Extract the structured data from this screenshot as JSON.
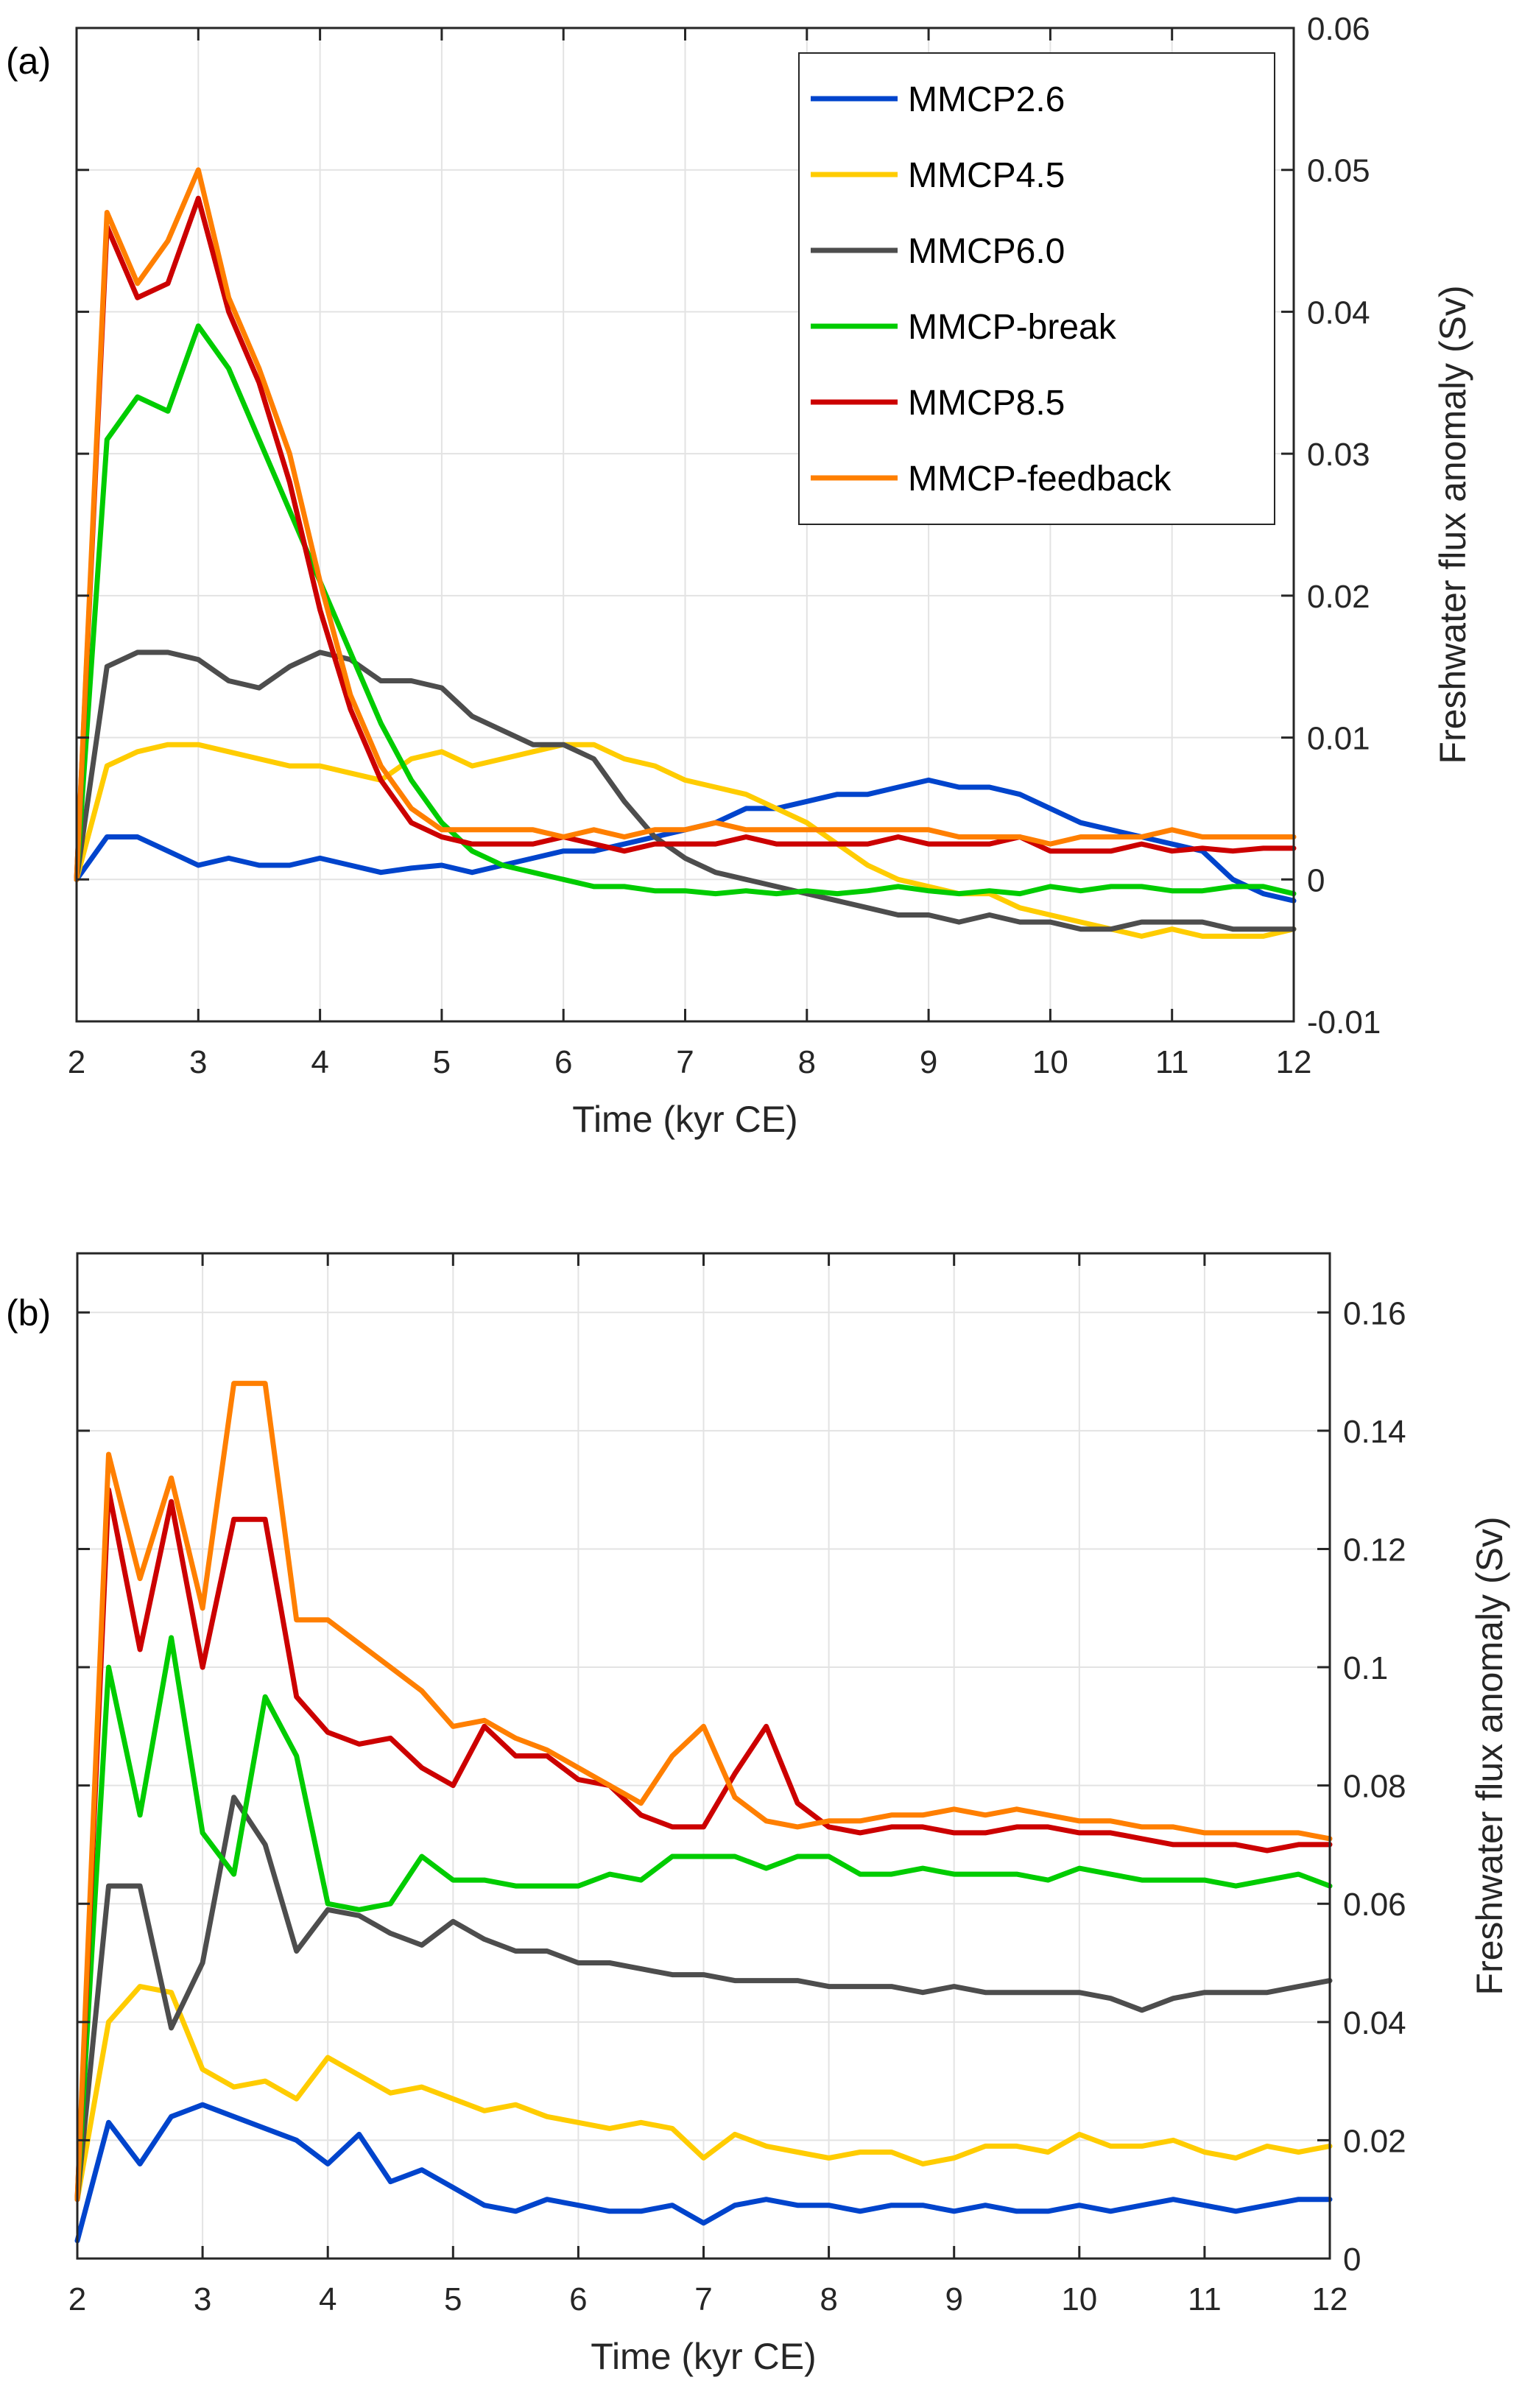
{
  "chart_data": [
    {
      "type": "line",
      "panel_label": "(a)",
      "xlabel": "Time (kyr CE)",
      "ylabel": "Freshwater flux anomaly (Sv)",
      "xlim": [
        2,
        12
      ],
      "ylim": [
        -0.01,
        0.06
      ],
      "x_ticks": [
        2,
        3,
        4,
        5,
        6,
        7,
        8,
        9,
        10,
        11,
        12
      ],
      "x_tick_labels": [
        "2",
        "3",
        "4",
        "5",
        "6",
        "7",
        "8",
        "9",
        "10",
        "11",
        "12"
      ],
      "y_ticks": [
        -0.01,
        0,
        0.01,
        0.02,
        0.03,
        0.04,
        0.05,
        0.06
      ],
      "y_tick_labels": [
        "-0.01",
        "0",
        "0.01",
        "0.02",
        "0.03",
        "0.04",
        "0.05",
        "0.06"
      ],
      "y_axis_side": "right",
      "grid": true,
      "legend_position": "top-right",
      "x": [
        2.0,
        2.25,
        2.5,
        2.75,
        3.0,
        3.25,
        3.5,
        3.75,
        4.0,
        4.25,
        4.5,
        4.75,
        5.0,
        5.25,
        5.5,
        5.75,
        6.0,
        6.25,
        6.5,
        6.75,
        7.0,
        7.25,
        7.5,
        7.75,
        8.0,
        8.25,
        8.5,
        8.75,
        9.0,
        9.25,
        9.5,
        9.75,
        10.0,
        10.25,
        10.5,
        10.75,
        11.0,
        11.25,
        11.5,
        11.75,
        12.0
      ],
      "series": [
        {
          "name": "MMCP2.6",
          "color": "#0044cc",
          "values": [
            0.0,
            0.003,
            0.003,
            0.002,
            0.001,
            0.0015,
            0.001,
            0.001,
            0.0015,
            0.001,
            0.0005,
            0.0008,
            0.001,
            0.0005,
            0.001,
            0.0015,
            0.002,
            0.002,
            0.0025,
            0.003,
            0.0035,
            0.004,
            0.005,
            0.005,
            0.0055,
            0.006,
            0.006,
            0.0065,
            0.007,
            0.0065,
            0.0065,
            0.006,
            0.005,
            0.004,
            0.0035,
            0.003,
            0.0025,
            0.002,
            0.0,
            -0.001,
            -0.0015
          ]
        },
        {
          "name": "MMCP4.5",
          "color": "#ffcc00",
          "values": [
            0.0,
            0.008,
            0.009,
            0.0095,
            0.0095,
            0.009,
            0.0085,
            0.008,
            0.008,
            0.0075,
            0.007,
            0.0085,
            0.009,
            0.008,
            0.0085,
            0.009,
            0.0095,
            0.0095,
            0.0085,
            0.008,
            0.007,
            0.0065,
            0.006,
            0.005,
            0.004,
            0.0025,
            0.001,
            0.0,
            -0.0005,
            -0.001,
            -0.001,
            -0.002,
            -0.0025,
            -0.003,
            -0.0035,
            -0.004,
            -0.0035,
            -0.004,
            -0.004,
            -0.004,
            -0.0035
          ]
        },
        {
          "name": "MMCP6.0",
          "color": "#4d4d4d",
          "values": [
            0.0,
            0.015,
            0.016,
            0.016,
            0.0155,
            0.014,
            0.0135,
            0.015,
            0.016,
            0.0155,
            0.014,
            0.014,
            0.0135,
            0.0115,
            0.0105,
            0.0095,
            0.0095,
            0.0085,
            0.0055,
            0.003,
            0.0015,
            0.0005,
            0.0,
            -0.0005,
            -0.001,
            -0.0015,
            -0.002,
            -0.0025,
            -0.0025,
            -0.003,
            -0.0025,
            -0.003,
            -0.003,
            -0.0035,
            -0.0035,
            -0.003,
            -0.003,
            -0.003,
            -0.0035,
            -0.0035,
            -0.0035
          ]
        },
        {
          "name": "MMCP-break",
          "color": "#00cc00",
          "values": [
            0.0,
            0.031,
            0.034,
            0.033,
            0.039,
            0.036,
            0.031,
            0.026,
            0.021,
            0.016,
            0.011,
            0.007,
            0.004,
            0.002,
            0.001,
            0.0005,
            0.0,
            -0.0005,
            -0.0005,
            -0.0008,
            -0.0008,
            -0.001,
            -0.0008,
            -0.001,
            -0.0008,
            -0.001,
            -0.0008,
            -0.0005,
            -0.0008,
            -0.001,
            -0.0008,
            -0.001,
            -0.0005,
            -0.0008,
            -0.0005,
            -0.0005,
            -0.0008,
            -0.0008,
            -0.0005,
            -0.0005,
            -0.001
          ]
        },
        {
          "name": "MMCP8.5",
          "color": "#cc0000",
          "values": [
            0.0,
            0.046,
            0.041,
            0.042,
            0.048,
            0.04,
            0.035,
            0.028,
            0.019,
            0.012,
            0.007,
            0.004,
            0.003,
            0.0025,
            0.0025,
            0.0025,
            0.003,
            0.0025,
            0.002,
            0.0025,
            0.0025,
            0.0025,
            0.003,
            0.0025,
            0.0025,
            0.0025,
            0.0025,
            0.003,
            0.0025,
            0.0025,
            0.0025,
            0.003,
            0.002,
            0.002,
            0.002,
            0.0025,
            0.002,
            0.0022,
            0.002,
            0.0022,
            0.0022
          ]
        },
        {
          "name": "MMCP-feedback",
          "color": "#ff7f00",
          "values": [
            0.0,
            0.047,
            0.042,
            0.045,
            0.05,
            0.041,
            0.036,
            0.03,
            0.021,
            0.013,
            0.008,
            0.005,
            0.0035,
            0.0035,
            0.0035,
            0.0035,
            0.003,
            0.0035,
            0.003,
            0.0035,
            0.0035,
            0.004,
            0.0035,
            0.0035,
            0.0035,
            0.0035,
            0.0035,
            0.0035,
            0.0035,
            0.003,
            0.003,
            0.003,
            0.0025,
            0.003,
            0.003,
            0.003,
            0.0035,
            0.003,
            0.003,
            0.003,
            0.003
          ]
        }
      ],
      "legend": [
        "MMCP2.6",
        "MMCP4.5",
        "MMCP6.0",
        "MMCP-break",
        "MMCP8.5",
        "MMCP-feedback"
      ]
    },
    {
      "type": "line",
      "panel_label": "(b)",
      "xlabel": "Time (kyr CE)",
      "ylabel": "Freshwater flux anomaly (Sv)",
      "xlim": [
        2,
        12
      ],
      "ylim": [
        0,
        0.17
      ],
      "x_ticks": [
        2,
        3,
        4,
        5,
        6,
        7,
        8,
        9,
        10,
        11,
        12
      ],
      "x_tick_labels": [
        "2",
        "3",
        "4",
        "5",
        "6",
        "7",
        "8",
        "9",
        "10",
        "11",
        "12"
      ],
      "y_ticks": [
        0,
        0.02,
        0.04,
        0.06,
        0.08,
        0.1,
        0.12,
        0.14,
        0.16
      ],
      "y_tick_labels": [
        "0",
        "0.02",
        "0.04",
        "0.06",
        "0.08",
        "0.1",
        "0.12",
        "0.14",
        "0.16"
      ],
      "y_axis_side": "right",
      "grid": true,
      "x": [
        2.0,
        2.25,
        2.5,
        2.75,
        3.0,
        3.25,
        3.5,
        3.75,
        4.0,
        4.25,
        4.5,
        4.75,
        5.0,
        5.25,
        5.5,
        5.75,
        6.0,
        6.25,
        6.5,
        6.75,
        7.0,
        7.25,
        7.5,
        7.75,
        8.0,
        8.25,
        8.5,
        8.75,
        9.0,
        9.25,
        9.5,
        9.75,
        10.0,
        10.25,
        10.5,
        10.75,
        11.0,
        11.25,
        11.5,
        11.75,
        12.0
      ],
      "series": [
        {
          "name": "MMCP2.6",
          "color": "#0044cc",
          "values": [
            0.003,
            0.023,
            0.016,
            0.024,
            0.026,
            0.024,
            0.022,
            0.02,
            0.016,
            0.021,
            0.013,
            0.015,
            0.012,
            0.009,
            0.008,
            0.01,
            0.009,
            0.008,
            0.008,
            0.009,
            0.006,
            0.009,
            0.01,
            0.009,
            0.009,
            0.008,
            0.009,
            0.009,
            0.008,
            0.009,
            0.008,
            0.008,
            0.009,
            0.008,
            0.009,
            0.01,
            0.009,
            0.008,
            0.009,
            0.01,
            0.01
          ]
        },
        {
          "name": "MMCP4.5",
          "color": "#ffcc00",
          "values": [
            0.01,
            0.04,
            0.046,
            0.045,
            0.032,
            0.029,
            0.03,
            0.027,
            0.034,
            0.031,
            0.028,
            0.029,
            0.027,
            0.025,
            0.026,
            0.024,
            0.023,
            0.022,
            0.023,
            0.022,
            0.017,
            0.021,
            0.019,
            0.018,
            0.017,
            0.018,
            0.018,
            0.016,
            0.017,
            0.019,
            0.019,
            0.018,
            0.021,
            0.019,
            0.019,
            0.02,
            0.018,
            0.017,
            0.019,
            0.018,
            0.019
          ]
        },
        {
          "name": "MMCP6.0",
          "color": "#4d4d4d",
          "values": [
            0.01,
            0.063,
            0.063,
            0.039,
            0.05,
            0.078,
            0.07,
            0.052,
            0.059,
            0.058,
            0.055,
            0.053,
            0.057,
            0.054,
            0.052,
            0.052,
            0.05,
            0.05,
            0.049,
            0.048,
            0.048,
            0.047,
            0.047,
            0.047,
            0.046,
            0.046,
            0.046,
            0.045,
            0.046,
            0.045,
            0.045,
            0.045,
            0.045,
            0.044,
            0.042,
            0.044,
            0.045,
            0.045,
            0.045,
            0.046,
            0.047
          ]
        },
        {
          "name": "MMCP-break",
          "color": "#00cc00",
          "values": [
            0.01,
            0.1,
            0.075,
            0.105,
            0.072,
            0.065,
            0.095,
            0.085,
            0.06,
            0.059,
            0.06,
            0.068,
            0.064,
            0.064,
            0.063,
            0.063,
            0.063,
            0.065,
            0.064,
            0.068,
            0.068,
            0.068,
            0.066,
            0.068,
            0.068,
            0.065,
            0.065,
            0.066,
            0.065,
            0.065,
            0.065,
            0.064,
            0.066,
            0.065,
            0.064,
            0.064,
            0.064,
            0.063,
            0.064,
            0.065,
            0.063
          ]
        },
        {
          "name": "MMCP8.5",
          "color": "#cc0000",
          "values": [
            0.01,
            0.13,
            0.103,
            0.128,
            0.1,
            0.125,
            0.125,
            0.095,
            0.089,
            0.087,
            0.088,
            0.083,
            0.08,
            0.09,
            0.085,
            0.085,
            0.081,
            0.08,
            0.075,
            0.073,
            0.073,
            0.082,
            0.09,
            0.077,
            0.073,
            0.072,
            0.073,
            0.073,
            0.072,
            0.072,
            0.073,
            0.073,
            0.072,
            0.072,
            0.071,
            0.07,
            0.07,
            0.07,
            0.069,
            0.07,
            0.07
          ]
        },
        {
          "name": "MMCP-feedback",
          "color": "#ff7f00",
          "values": [
            0.01,
            0.136,
            0.115,
            0.132,
            0.11,
            0.148,
            0.148,
            0.108,
            0.108,
            0.104,
            0.1,
            0.096,
            0.09,
            0.091,
            0.088,
            0.086,
            0.083,
            0.08,
            0.077,
            0.085,
            0.09,
            0.078,
            0.074,
            0.073,
            0.074,
            0.074,
            0.075,
            0.075,
            0.076,
            0.075,
            0.076,
            0.075,
            0.074,
            0.074,
            0.073,
            0.073,
            0.072,
            0.072,
            0.072,
            0.072,
            0.071
          ]
        }
      ]
    }
  ]
}
